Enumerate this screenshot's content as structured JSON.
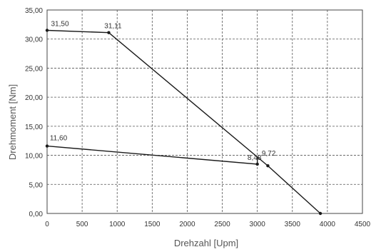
{
  "chart_data": {
    "type": "line",
    "xlabel": "Drehzahl [Upm]",
    "ylabel": "Drehmoment [Nm]",
    "xlim": [
      0,
      4500
    ],
    "ylim": [
      0,
      35
    ],
    "x_ticks": [
      "0",
      "500",
      "1000",
      "1500",
      "2000",
      "2500",
      "3000",
      "3500",
      "4000",
      "4500"
    ],
    "y_ticks": [
      "0,00",
      "5,00",
      "10,00",
      "15,00",
      "20,00",
      "25,00",
      "30,00",
      "35,00"
    ],
    "grid": true,
    "legend": "none",
    "line_color": "#1a1a1a",
    "grid_color": "#555555",
    "series": [
      {
        "points": [
          {
            "x": 0,
            "y": 31.5,
            "label": "31,50"
          },
          {
            "x": 880,
            "y": 31.11,
            "label": "31,11"
          },
          {
            "x": 3150,
            "y": 8.2,
            "label": ""
          },
          {
            "x": 3900,
            "y": 0.0,
            "label": ""
          }
        ]
      },
      {
        "points": [
          {
            "x": 0,
            "y": 11.6,
            "label": "11,60"
          },
          {
            "x": 3000,
            "y": 8.48,
            "label": "8,48"
          },
          {
            "x": 3000,
            "y": 9.72,
            "label": "9,72"
          }
        ]
      }
    ]
  }
}
